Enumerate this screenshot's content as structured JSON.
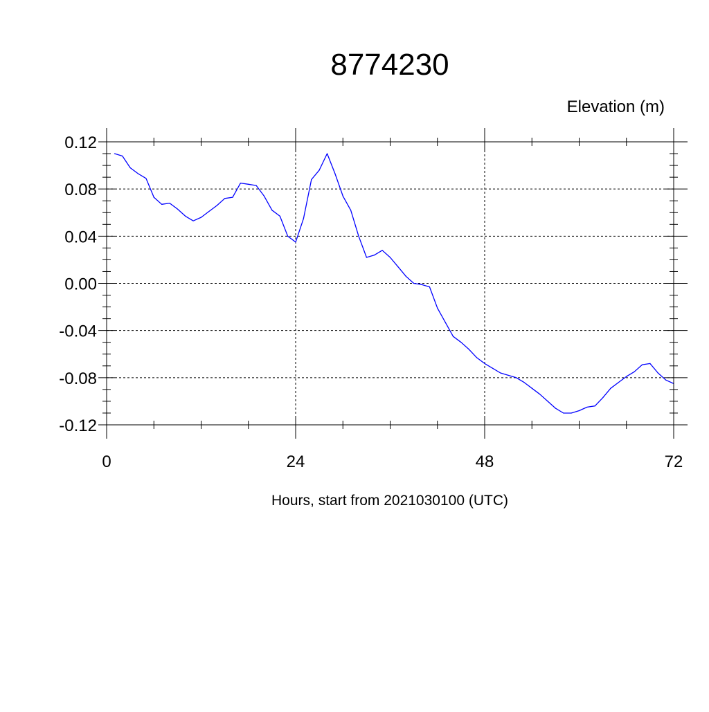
{
  "chart_data": {
    "type": "line",
    "title": "8774230",
    "ylabel": "Elevation (m)",
    "xlabel": "Hours, start from 2021030100 (UTC)",
    "xlim": [
      0,
      72
    ],
    "ylim": [
      -0.12,
      0.12
    ],
    "x_ticks": [
      0,
      24,
      48,
      72
    ],
    "x_tick_labels": [
      "0",
      "24",
      "48",
      "72"
    ],
    "y_ticks": [
      0.12,
      0.08,
      0.04,
      0.0,
      -0.04,
      -0.08,
      -0.12
    ],
    "y_tick_labels": [
      "0.12",
      "0.08",
      "0.04",
      "0.00",
      "-0.04",
      "-0.08",
      "-0.12"
    ],
    "grid": true,
    "line_color": "#0000ff",
    "series": [
      {
        "x": [
          1,
          2,
          3,
          4,
          5,
          6,
          7,
          8,
          9,
          10,
          11,
          12,
          13,
          14,
          15,
          16,
          17,
          18,
          19,
          20,
          21,
          22,
          23,
          24,
          25,
          26,
          27,
          28,
          29,
          30,
          31,
          32,
          33,
          34,
          35,
          36,
          37,
          38,
          39,
          40,
          41,
          42,
          43,
          44,
          45,
          46,
          47,
          48,
          49,
          50,
          51,
          52,
          53,
          54,
          55,
          56,
          57,
          58,
          59,
          60,
          61,
          62,
          63,
          64,
          65,
          66,
          67,
          68,
          69,
          70,
          71,
          72
        ],
        "values": [
          0.11,
          0.108,
          0.098,
          0.093,
          0.089,
          0.073,
          0.067,
          0.068,
          0.063,
          0.057,
          0.053,
          0.056,
          0.061,
          0.066,
          0.072,
          0.073,
          0.085,
          0.084,
          0.083,
          0.074,
          0.062,
          0.057,
          0.04,
          0.035,
          0.055,
          0.088,
          0.096,
          0.11,
          0.093,
          0.074,
          0.062,
          0.04,
          0.022,
          0.024,
          0.028,
          0.022,
          0.014,
          0.006,
          0.0,
          -0.001,
          -0.003,
          -0.021,
          -0.033,
          -0.045,
          -0.05,
          -0.056,
          -0.063,
          -0.068,
          -0.072,
          -0.076,
          -0.078,
          -0.08,
          -0.084,
          -0.089,
          -0.094,
          -0.1,
          -0.106,
          -0.11,
          -0.11,
          -0.108,
          -0.105,
          -0.104,
          -0.097,
          -0.089,
          -0.084,
          -0.079,
          -0.075,
          -0.069,
          -0.068,
          -0.076,
          -0.082,
          -0.085
        ]
      }
    ]
  }
}
